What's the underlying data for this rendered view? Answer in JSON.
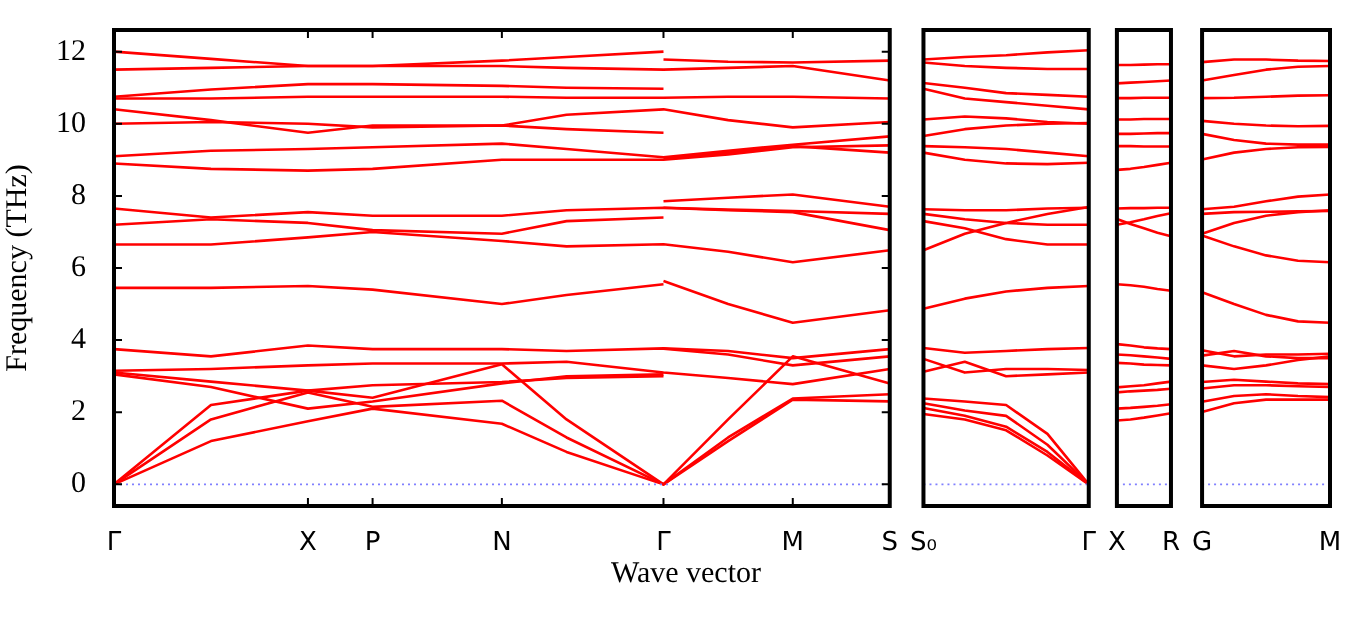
{
  "chart_data": [
    {
      "type": "line",
      "ylabel": "Frequency (THz)",
      "xlabel": "Wave vector",
      "ylim": [
        -0.6,
        12.6
      ],
      "yticks": [
        0,
        2,
        4,
        6,
        8,
        10,
        12
      ],
      "categories": [
        "Γ",
        null,
        null,
        null,
        null,
        null,
        "X",
        null,
        "P",
        null,
        null,
        null,
        "N",
        null,
        null,
        null,
        null,
        "Γ",
        null,
        null,
        null,
        "M",
        null,
        null,
        "S"
      ],
      "ref_lines": [
        {
          "axis": "y",
          "value": 0,
          "color": "#8080ff",
          "line_style": "dotted"
        }
      ],
      "series": [
        {
          "color": "#ff0000",
          "values": [
            12.0,
            null,
            null,
            11.8,
            null,
            null,
            11.6,
            null,
            11.6,
            null,
            null,
            null,
            11.75,
            null,
            11.85,
            null,
            null,
            12.0,
            null,
            null,
            null,
            null,
            null,
            null,
            null
          ]
        },
        {
          "color": "#ff0000",
          "values": [
            11.5,
            null,
            null,
            11.55,
            null,
            null,
            11.6,
            null,
            11.6,
            null,
            null,
            null,
            11.6,
            null,
            11.55,
            null,
            null,
            11.5,
            null,
            11.55,
            null,
            11.6,
            null,
            null,
            11.2
          ]
        },
        {
          "color": "#ff0000",
          "values": [
            10.75,
            null,
            null,
            10.95,
            null,
            null,
            11.1,
            null,
            11.1,
            null,
            null,
            null,
            11.05,
            null,
            11.0,
            null,
            null,
            10.97,
            null,
            null,
            null,
            null,
            null,
            null,
            null
          ]
        },
        {
          "color": "#ff0000",
          "values": [
            10.7,
            null,
            null,
            10.7,
            null,
            null,
            10.75,
            null,
            10.75,
            null,
            null,
            null,
            10.75,
            null,
            10.72,
            null,
            null,
            10.72,
            null,
            10.75,
            null,
            10.75,
            null,
            null,
            10.7
          ]
        },
        {
          "color": "#ff0000",
          "values": [
            10.4,
            null,
            null,
            10.1,
            null,
            null,
            9.75,
            null,
            9.95,
            null,
            null,
            null,
            9.95,
            null,
            10.25,
            null,
            null,
            10.4,
            null,
            10.1,
            null,
            9.9,
            null,
            null,
            10.05
          ]
        },
        {
          "color": "#ff0000",
          "values": [
            10.0,
            null,
            null,
            10.05,
            null,
            null,
            10.0,
            null,
            9.9,
            null,
            null,
            null,
            9.95,
            null,
            9.85,
            null,
            null,
            9.75,
            null,
            null,
            null,
            null,
            null,
            null,
            null
          ]
        },
        {
          "color": "#ff0000",
          "values": [
            9.1,
            null,
            null,
            9.25,
            null,
            null,
            9.3,
            null,
            9.35,
            null,
            null,
            null,
            9.45,
            null,
            9.3,
            null,
            null,
            9.07,
            null,
            9.25,
            null,
            9.42,
            null,
            null,
            9.65
          ]
        },
        {
          "color": "#ff0000",
          "values": [
            8.9,
            null,
            null,
            8.75,
            null,
            null,
            8.7,
            null,
            8.75,
            null,
            null,
            null,
            9.0,
            null,
            9.0,
            null,
            null,
            9.0,
            null,
            9.15,
            null,
            9.35,
            null,
            null,
            9.4
          ]
        },
        {
          "color": "#ff0000",
          "values": [
            7.65,
            null,
            null,
            7.4,
            null,
            null,
            7.55,
            null,
            7.45,
            null,
            null,
            null,
            7.45,
            null,
            7.6,
            null,
            null,
            7.67,
            null,
            7.62,
            null,
            7.58,
            null,
            null,
            7.5
          ]
        },
        {
          "color": "#ff0000",
          "values": [
            7.2,
            null,
            null,
            7.35,
            null,
            null,
            7.25,
            null,
            7.05,
            null,
            null,
            null,
            6.95,
            null,
            7.3,
            null,
            null,
            7.4,
            null,
            null,
            null,
            null,
            null,
            null,
            null
          ]
        },
        {
          "color": "#ff0000",
          "values": [
            6.65,
            null,
            null,
            6.65,
            null,
            null,
            6.85,
            null,
            7.0,
            null,
            null,
            null,
            6.75,
            null,
            6.6,
            null,
            null,
            6.66,
            null,
            6.45,
            null,
            6.16,
            null,
            null,
            6.49
          ]
        },
        {
          "color": "#ff0000",
          "values": [
            5.45,
            null,
            null,
            5.45,
            null,
            null,
            5.5,
            null,
            5.4,
            null,
            null,
            null,
            5.0,
            null,
            5.25,
            null,
            null,
            5.55,
            null,
            null,
            null,
            null,
            null,
            null,
            null
          ]
        },
        {
          "color": "#ff0000",
          "values": [
            3.75,
            null,
            null,
            3.55,
            null,
            null,
            3.85,
            null,
            3.75,
            null,
            null,
            null,
            3.75,
            null,
            3.7,
            null,
            null,
            3.77,
            null,
            3.7,
            null,
            3.5,
            null,
            null,
            3.75
          ]
        },
        {
          "color": "#ff0000",
          "values": [
            3.15,
            null,
            null,
            3.2,
            null,
            null,
            3.3,
            null,
            3.35,
            null,
            null,
            null,
            3.35,
            null,
            3.4,
            null,
            null,
            3.1,
            null,
            2.95,
            null,
            2.78,
            null,
            null,
            3.2
          ]
        },
        {
          "color": "#ff0000",
          "values": [
            3.1,
            null,
            null,
            2.85,
            null,
            null,
            2.6,
            null,
            2.75,
            null,
            null,
            null,
            2.84,
            null,
            2.95,
            null,
            null,
            3.0,
            null,
            null,
            null,
            null,
            null,
            null,
            null
          ]
        },
        {
          "color": "#ff0000",
          "values": [
            3.05,
            null,
            null,
            2.7,
            null,
            null,
            2.1,
            null,
            2.3,
            null,
            null,
            null,
            2.8,
            null,
            3.0,
            null,
            null,
            3.05,
            null,
            null,
            null,
            null,
            null,
            null,
            null
          ]
        },
        {
          "color": "#ff0000",
          "values": [
            0,
            null,
            null,
            2.2,
            null,
            null,
            2.6,
            null,
            2.4,
            null,
            null,
            null,
            3.33,
            null,
            1.8,
            null,
            null,
            0,
            null,
            1.8,
            null,
            3.55,
            null,
            null,
            2.8
          ]
        },
        {
          "color": "#ff0000",
          "values": [
            0,
            null,
            null,
            1.8,
            null,
            null,
            2.55,
            null,
            2.15,
            null,
            null,
            null,
            2.32,
            null,
            1.3,
            null,
            null,
            0,
            null,
            1.3,
            null,
            2.38,
            null,
            null,
            2.5
          ]
        },
        {
          "color": "#ff0000",
          "values": [
            0,
            null,
            null,
            1.2,
            null,
            null,
            1.75,
            null,
            2.1,
            null,
            null,
            null,
            1.68,
            null,
            0.9,
            null,
            null,
            0,
            null,
            1.2,
            null,
            2.35,
            null,
            null,
            2.3
          ]
        },
        {
          "color": "#ff0000",
          "values": [
            null,
            null,
            null,
            null,
            null,
            null,
            null,
            null,
            null,
            null,
            null,
            null,
            null,
            null,
            null,
            null,
            null,
            11.78,
            null,
            11.72,
            null,
            11.7,
            null,
            null,
            11.75
          ]
        },
        {
          "color": "#ff0000",
          "values": [
            null,
            null,
            null,
            null,
            null,
            null,
            null,
            null,
            null,
            null,
            null,
            null,
            null,
            null,
            null,
            null,
            null,
            9.04,
            null,
            9.2,
            null,
            9.38,
            null,
            null,
            9.2
          ]
        },
        {
          "color": "#ff0000",
          "values": [
            null,
            null,
            null,
            null,
            null,
            null,
            null,
            null,
            null,
            null,
            null,
            null,
            null,
            null,
            null,
            null,
            null,
            7.85,
            null,
            7.95,
            null,
            8.04,
            null,
            null,
            7.7
          ]
        },
        {
          "color": "#ff0000",
          "values": [
            null,
            null,
            null,
            null,
            null,
            null,
            null,
            null,
            null,
            null,
            null,
            null,
            null,
            null,
            null,
            null,
            null,
            7.67,
            null,
            7.6,
            null,
            7.55,
            null,
            null,
            7.05
          ]
        },
        {
          "color": "#ff0000",
          "values": [
            null,
            null,
            null,
            null,
            null,
            null,
            null,
            null,
            null,
            null,
            null,
            null,
            null,
            null,
            null,
            null,
            null,
            5.64,
            null,
            5.0,
            null,
            4.48,
            null,
            null,
            4.83
          ]
        },
        {
          "color": "#ff0000",
          "values": [
            null,
            null,
            null,
            null,
            null,
            null,
            null,
            null,
            null,
            null,
            null,
            null,
            null,
            null,
            null,
            null,
            null,
            3.76,
            null,
            3.6,
            null,
            3.3,
            null,
            null,
            3.55
          ]
        }
      ]
    },
    {
      "type": "line",
      "ylim": [
        -0.6,
        12.6
      ],
      "tick_labels": "x",
      "categories": [
        "S₀",
        null,
        null,
        null,
        "Γ"
      ],
      "ref_lines": [
        {
          "axis": "y",
          "value": 0,
          "color": "#8080ff",
          "line_style": "dotted"
        }
      ],
      "series": [
        {
          "color": "#ff0000",
          "values": [
            11.78,
            11.85,
            11.9,
            11.98,
            12.04
          ]
        },
        {
          "color": "#ff0000",
          "values": [
            11.7,
            11.6,
            11.55,
            11.52,
            11.52
          ]
        },
        {
          "color": "#ff0000",
          "values": [
            11.13,
            11.0,
            10.85,
            10.8,
            10.75
          ]
        },
        {
          "color": "#ff0000",
          "values": [
            10.97,
            10.7,
            10.6,
            10.5,
            10.4
          ]
        },
        {
          "color": "#ff0000",
          "values": [
            10.12,
            10.2,
            10.15,
            10.05,
            10.0
          ]
        },
        {
          "color": "#ff0000",
          "values": [
            9.66,
            9.85,
            9.95,
            10.0,
            10.02
          ]
        },
        {
          "color": "#ff0000",
          "values": [
            9.38,
            9.35,
            9.3,
            9.2,
            9.1
          ]
        },
        {
          "color": "#ff0000",
          "values": [
            9.2,
            9.0,
            8.9,
            8.88,
            8.92
          ]
        },
        {
          "color": "#ff0000",
          "values": [
            7.63,
            7.6,
            7.6,
            7.65,
            7.67
          ]
        },
        {
          "color": "#ff0000",
          "values": [
            7.5,
            7.35,
            7.25,
            7.2,
            7.2
          ]
        },
        {
          "color": "#ff0000",
          "values": [
            7.3,
            7.1,
            6.8,
            6.65,
            6.65
          ]
        },
        {
          "color": "#ff0000",
          "values": [
            6.49,
            6.95,
            7.25,
            7.5,
            7.69
          ]
        },
        {
          "color": "#ff0000",
          "values": [
            4.87,
            5.15,
            5.35,
            5.45,
            5.5
          ]
        },
        {
          "color": "#ff0000",
          "values": [
            3.78,
            3.65,
            3.7,
            3.75,
            3.78
          ]
        },
        {
          "color": "#ff0000",
          "values": [
            3.48,
            3.1,
            3.2,
            3.2,
            3.17
          ]
        },
        {
          "color": "#ff0000",
          "values": [
            3.12,
            3.4,
            3.0,
            3.05,
            3.1
          ]
        },
        {
          "color": "#ff0000",
          "values": [
            2.38,
            2.3,
            2.2,
            1.4,
            0
          ]
        },
        {
          "color": "#ff0000",
          "values": [
            2.25,
            2.05,
            1.9,
            1.1,
            0
          ]
        },
        {
          "color": "#ff0000",
          "values": [
            2.12,
            1.9,
            1.6,
            0.9,
            0
          ]
        },
        {
          "color": "#ff0000",
          "values": [
            1.95,
            1.8,
            1.5,
            0.8,
            0
          ]
        }
      ]
    },
    {
      "type": "line",
      "ylim": [
        -0.6,
        12.6
      ],
      "tick_labels": "x",
      "categories": [
        "X",
        null,
        null,
        null,
        "R"
      ],
      "ref_lines": [
        {
          "axis": "y",
          "value": 0,
          "color": "#8080ff",
          "line_style": "dotted"
        }
      ],
      "series": [
        {
          "color": "#ff0000",
          "values": [
            11.63,
            11.63,
            11.64,
            11.65,
            11.65
          ]
        },
        {
          "color": "#ff0000",
          "values": [
            11.12,
            11.14,
            11.16,
            11.18,
            11.2
          ]
        },
        {
          "color": "#ff0000",
          "values": [
            10.71,
            10.71,
            10.72,
            10.72,
            10.72
          ]
        },
        {
          "color": "#ff0000",
          "values": [
            10.12,
            10.12,
            10.13,
            10.13,
            10.13
          ]
        },
        {
          "color": "#ff0000",
          "values": [
            9.72,
            9.72,
            9.73,
            9.74,
            9.74
          ]
        },
        {
          "color": "#ff0000",
          "values": [
            9.38,
            9.38,
            9.37,
            9.37,
            9.37
          ]
        },
        {
          "color": "#ff0000",
          "values": [
            8.72,
            8.75,
            8.8,
            8.86,
            8.92
          ]
        },
        {
          "color": "#ff0000",
          "values": [
            7.65,
            7.66,
            7.66,
            7.67,
            7.67
          ]
        },
        {
          "color": "#ff0000",
          "values": [
            7.36,
            7.22,
            7.1,
            6.98,
            6.88
          ]
        },
        {
          "color": "#ff0000",
          "values": [
            7.2,
            7.27,
            7.35,
            7.44,
            7.52
          ]
        },
        {
          "color": "#ff0000",
          "values": [
            5.55,
            5.52,
            5.48,
            5.42,
            5.37
          ]
        },
        {
          "color": "#ff0000",
          "values": [
            3.89,
            3.85,
            3.8,
            3.77,
            3.75
          ]
        },
        {
          "color": "#ff0000",
          "values": [
            3.6,
            3.58,
            3.55,
            3.52,
            3.48
          ]
        },
        {
          "color": "#ff0000",
          "values": [
            3.37,
            3.35,
            3.32,
            3.31,
            3.3
          ]
        },
        {
          "color": "#ff0000",
          "values": [
            2.69,
            2.72,
            2.75,
            2.8,
            2.85
          ]
        },
        {
          "color": "#ff0000",
          "values": [
            2.55,
            2.58,
            2.6,
            2.62,
            2.65
          ]
        },
        {
          "color": "#ff0000",
          "values": [
            2.1,
            2.12,
            2.15,
            2.18,
            2.22
          ]
        },
        {
          "color": "#ff0000",
          "values": [
            1.77,
            1.8,
            1.85,
            1.91,
            1.97
          ]
        }
      ]
    },
    {
      "type": "line",
      "ylim": [
        -0.6,
        12.6
      ],
      "tick_labels": "x",
      "categories": [
        "G",
        null,
        null,
        null,
        "M"
      ],
      "ref_lines": [
        {
          "axis": "y",
          "value": 0,
          "color": "#8080ff",
          "line_style": "dotted"
        }
      ],
      "series": [
        {
          "color": "#ff0000",
          "values": [
            11.71,
            11.78,
            11.78,
            11.75,
            11.74
          ]
        },
        {
          "color": "#ff0000",
          "values": [
            11.2,
            11.35,
            11.5,
            11.58,
            11.6
          ]
        },
        {
          "color": "#ff0000",
          "values": [
            10.71,
            10.72,
            10.75,
            10.78,
            10.79
          ]
        },
        {
          "color": "#ff0000",
          "values": [
            10.08,
            10.0,
            9.95,
            9.93,
            9.94
          ]
        },
        {
          "color": "#ff0000",
          "values": [
            9.72,
            9.55,
            9.45,
            9.42,
            9.42
          ]
        },
        {
          "color": "#ff0000",
          "values": [
            9.01,
            9.2,
            9.3,
            9.35,
            9.36
          ]
        },
        {
          "color": "#ff0000",
          "values": [
            7.63,
            7.7,
            7.85,
            7.98,
            8.04
          ]
        },
        {
          "color": "#ff0000",
          "values": [
            7.5,
            7.55,
            7.56,
            7.57,
            7.58
          ]
        },
        {
          "color": "#ff0000",
          "values": [
            6.95,
            7.25,
            7.45,
            7.55,
            7.6
          ]
        },
        {
          "color": "#ff0000",
          "values": [
            6.9,
            6.6,
            6.35,
            6.2,
            6.16
          ]
        },
        {
          "color": "#ff0000",
          "values": [
            5.33,
            5.0,
            4.7,
            4.52,
            4.48
          ]
        },
        {
          "color": "#ff0000",
          "values": [
            3.72,
            3.55,
            3.6,
            3.6,
            3.62
          ]
        },
        {
          "color": "#ff0000",
          "values": [
            3.57,
            3.7,
            3.55,
            3.5,
            3.5
          ]
        },
        {
          "color": "#ff0000",
          "values": [
            3.3,
            3.2,
            3.3,
            3.45,
            3.55
          ]
        },
        {
          "color": "#ff0000",
          "values": [
            2.84,
            2.9,
            2.85,
            2.8,
            2.78
          ]
        },
        {
          "color": "#ff0000",
          "values": [
            2.66,
            2.75,
            2.75,
            2.72,
            2.7
          ]
        },
        {
          "color": "#ff0000",
          "values": [
            2.29,
            2.45,
            2.5,
            2.45,
            2.42
          ]
        },
        {
          "color": "#ff0000",
          "values": [
            2.01,
            2.25,
            2.35,
            2.35,
            2.35
          ]
        }
      ]
    }
  ]
}
